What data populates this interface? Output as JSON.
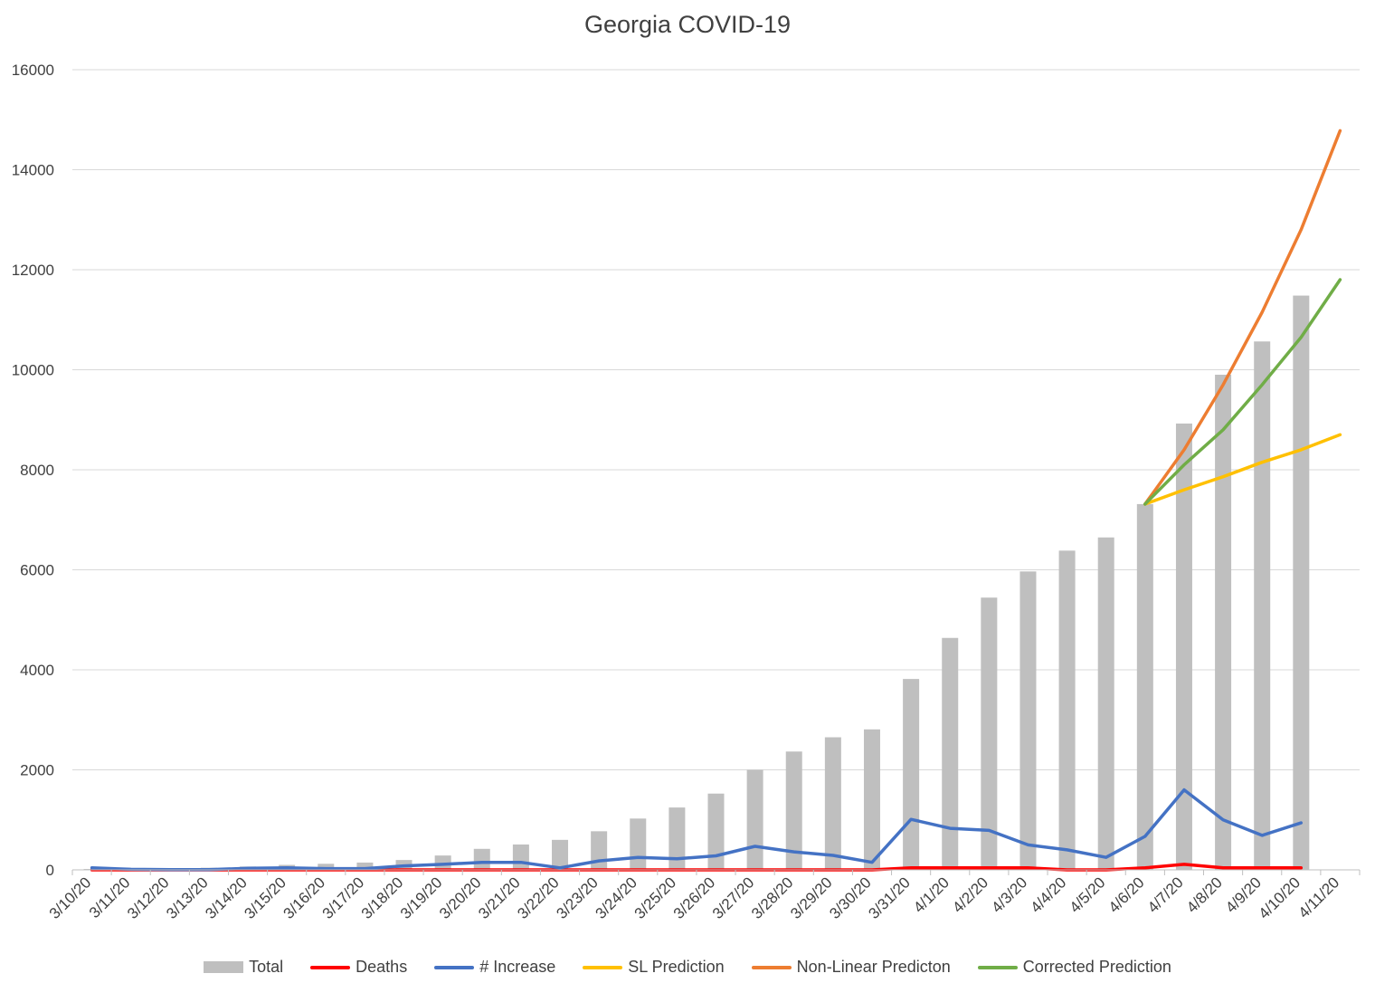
{
  "chart_data": {
    "type": "bar",
    "title": "Georgia COVID-19",
    "xlabel": "",
    "ylabel": "",
    "ylim": [
      0,
      16000
    ],
    "yticks": [
      0,
      2000,
      4000,
      6000,
      8000,
      10000,
      12000,
      14000,
      16000
    ],
    "grid": true,
    "legend_position": "bottom",
    "categories": [
      "3/10/20",
      "3/11/20",
      "3/12/20",
      "3/13/20",
      "3/14/20",
      "3/15/20",
      "3/16/20",
      "3/17/20",
      "3/18/20",
      "3/19/20",
      "3/20/20",
      "3/21/20",
      "3/22/20",
      "3/23/20",
      "3/24/20",
      "3/25/20",
      "3/26/20",
      "3/27/20",
      "3/28/20",
      "3/29/20",
      "3/30/20",
      "3/31/20",
      "4/1/20",
      "4/2/20",
      "4/3/20",
      "4/4/20",
      "4/5/20",
      "4/6/20",
      "4/7/20",
      "4/8/20",
      "4/9/20",
      "4/10/20",
      "4/11/20"
    ],
    "series": [
      {
        "name": "Total",
        "kind": "bar",
        "color": "#bfbfbf",
        "values": [
          17,
          22,
          31,
          42,
          66,
          99,
          121,
          146,
          197,
          287,
          420,
          507,
          600,
          772,
          1026,
          1247,
          1525,
          2000,
          2366,
          2651,
          2809,
          3817,
          4638,
          5444,
          5967,
          6383,
          6647,
          7314,
          8925,
          9901,
          10566,
          11483,
          null
        ]
      },
      {
        "name": "Deaths",
        "kind": "line",
        "color": "#ff0000",
        "values": [
          0,
          0,
          0,
          0,
          0,
          0,
          0,
          0,
          0,
          0,
          0,
          0,
          0,
          0,
          0,
          0,
          0,
          0,
          0,
          0,
          0,
          40,
          40,
          40,
          40,
          0,
          0,
          40,
          110,
          40,
          40,
          40,
          null
        ]
      },
      {
        "name": "# Increase",
        "kind": "line",
        "color": "#4472c4",
        "values": [
          40,
          10,
          5,
          5,
          30,
          40,
          25,
          25,
          80,
          110,
          150,
          150,
          40,
          180,
          250,
          220,
          280,
          470,
          360,
          290,
          150,
          1010,
          830,
          790,
          500,
          400,
          250,
          670,
          1600,
          1000,
          690,
          940,
          null
        ]
      },
      {
        "name": "SL Prediction",
        "kind": "line",
        "color": "#ffc000",
        "values": [
          null,
          null,
          null,
          null,
          null,
          null,
          null,
          null,
          null,
          null,
          null,
          null,
          null,
          null,
          null,
          null,
          null,
          null,
          null,
          null,
          null,
          null,
          null,
          null,
          null,
          null,
          null,
          7314,
          7600,
          7860,
          8150,
          8400,
          8700
        ]
      },
      {
        "name": "Non-Linear Predicton",
        "kind": "line",
        "color": "#ed7d31",
        "values": [
          null,
          null,
          null,
          null,
          null,
          null,
          null,
          null,
          null,
          null,
          null,
          null,
          null,
          null,
          null,
          null,
          null,
          null,
          null,
          null,
          null,
          null,
          null,
          null,
          null,
          null,
          null,
          7314,
          8400,
          9700,
          11150,
          12800,
          14780
        ]
      },
      {
        "name": "Corrected Prediction",
        "kind": "line",
        "color": "#70ad47",
        "values": [
          null,
          null,
          null,
          null,
          null,
          null,
          null,
          null,
          null,
          null,
          null,
          null,
          null,
          null,
          null,
          null,
          null,
          null,
          null,
          null,
          null,
          null,
          null,
          null,
          null,
          null,
          null,
          7314,
          8100,
          8800,
          9700,
          10650,
          11800
        ]
      }
    ]
  }
}
